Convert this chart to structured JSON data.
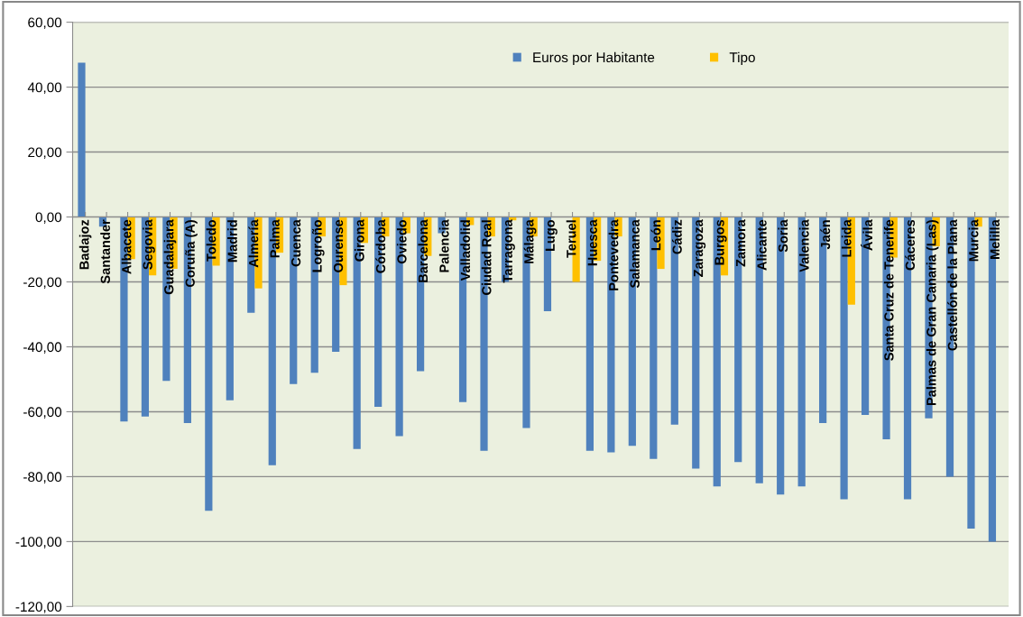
{
  "chart_data": {
    "type": "bar",
    "categories": [
      "Badajoz",
      "Santander",
      "Albacete",
      "Segovia",
      "Guadalajara",
      "Coruña (A)",
      "Toledo",
      "Madrid",
      "Almería",
      "Palma",
      "Cuenca",
      "Logroño",
      "Ourense",
      "Girona",
      "Córdoba",
      "Oviedo",
      "Barcelona",
      "Palencia",
      "Valladolid",
      "Ciudad Real",
      "Tarragona",
      "Málaga",
      "Lugo",
      "Teruel",
      "Huesca",
      "Pontevedra",
      "Salamanca",
      "León",
      "Cádiz",
      "Zaragoza",
      "Burgos",
      "Zamora",
      "Alicante",
      "Soria",
      "Valencia",
      "Jaén",
      "Lleida",
      "Ávila",
      "Santa Cruz de Tenerife",
      "Cáceres",
      "Palmas de Gran Canaria (Las)",
      "Castellón de la Plana",
      "Murcia",
      "Melilla"
    ],
    "series": [
      {
        "name": "Euros por Habitante",
        "color": "#4f81bd",
        "values": [
          47.5,
          -3,
          -63,
          -61.5,
          -50.5,
          -63.5,
          -90.5,
          -56.5,
          -29.5,
          -76.5,
          -51.5,
          -48,
          -41.5,
          -71.5,
          -58.5,
          -67.5,
          -47.5,
          -5,
          -57,
          -72,
          -20,
          -65,
          -29,
          null,
          -72,
          -72.5,
          -70.5,
          -74.5,
          -64,
          -77.5,
          -83,
          -75.5,
          -82,
          -85.5,
          -83,
          -63.5,
          -87,
          -61,
          -68.5,
          -87,
          -62,
          -80,
          -96,
          -100
        ]
      },
      {
        "name": "Tipo",
        "color": "#ffc000",
        "values": [
          null,
          null,
          -13,
          -18,
          -16,
          null,
          -15,
          null,
          -22,
          -11,
          null,
          -6,
          -21,
          -8,
          -6,
          -5,
          -12,
          null,
          -2.5,
          -6,
          -1,
          -6,
          null,
          -20,
          -13.5,
          -6,
          null,
          -16,
          null,
          null,
          -18,
          null,
          null,
          null,
          null,
          null,
          -27,
          null,
          -12.5,
          null,
          -9,
          null,
          -3,
          null
        ]
      }
    ],
    "ylim": [
      -120,
      60
    ],
    "yticks": [
      {
        "value": -120,
        "label": "-120,00"
      },
      {
        "value": -100,
        "label": "-100,00"
      },
      {
        "value": -80,
        "label": "-80,00"
      },
      {
        "value": -60,
        "label": "-60,00"
      },
      {
        "value": -40,
        "label": "-40,00"
      },
      {
        "value": -20,
        "label": "-20,00"
      },
      {
        "value": 0,
        "label": "0,00"
      },
      {
        "value": 20,
        "label": "20,00"
      },
      {
        "value": 40,
        "label": "40,00"
      },
      {
        "value": 60,
        "label": "60,00"
      }
    ],
    "grid": "y",
    "legend": "top"
  }
}
